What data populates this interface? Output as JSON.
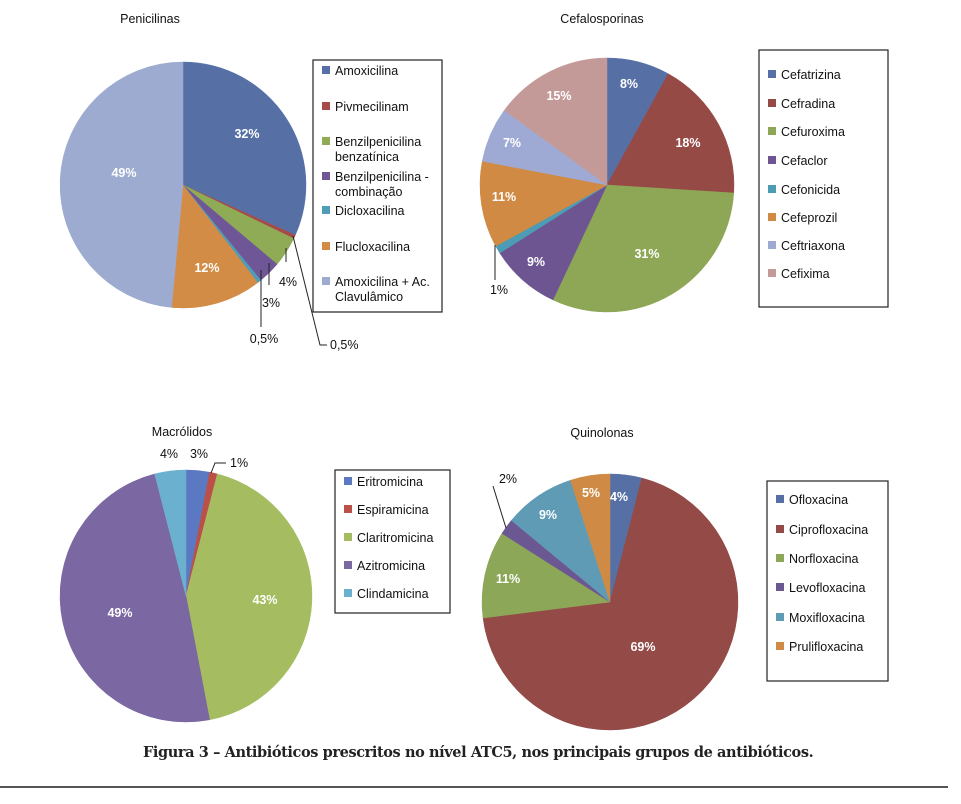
{
  "chart_data": [
    {
      "type": "pie",
      "title": "Penicilinas",
      "start_angle_deg": 0,
      "direction": "clockwise",
      "categories": [
        "Amoxicilina",
        "Pivmecilinam",
        "Benzilpenicilina benzatínica",
        "Benzilpenicilina - combinação",
        "Dicloxacilina",
        "Flucloxacilina",
        "Amoxicilina + Ac. Clavulâmico"
      ],
      "legend_lines": [
        [
          "Amoxicilina"
        ],
        [
          "Pivmecilinam"
        ],
        [
          "Benzilpenicilina",
          "benzatínica"
        ],
        [
          "Benzilpenicilina -",
          "combinação"
        ],
        [
          "Dicloxacilina"
        ],
        [
          "Flucloxacilina"
        ],
        [
          "Amoxicilina + Ac.",
          "Clavulâmico"
        ]
      ],
      "values": [
        32,
        0.5,
        4,
        3,
        0.5,
        12,
        49
      ],
      "labels": [
        "32%",
        "0,5%",
        "4%",
        "3%",
        "0,5%",
        "12%",
        "49%"
      ],
      "colors": [
        "#5670a6",
        "#a64b47",
        "#8fab55",
        "#6f5797",
        "#4f9cb7",
        "#d38c45",
        "#9eabd1"
      ],
      "legend_position": "right"
    },
    {
      "type": "pie",
      "title": "Cefalosporinas",
      "start_angle_deg": 0,
      "direction": "clockwise",
      "categories": [
        "Cefatrizina",
        "Cefradina",
        "Cefuroxima",
        "Cefaclor",
        "Cefonicida",
        "Cefeprozil",
        "Ceftriaxona",
        "Cefixima"
      ],
      "legend_lines": [
        [
          "Cefatrizina"
        ],
        [
          "Cefradina"
        ],
        [
          "Cefuroxima"
        ],
        [
          "Cefaclor"
        ],
        [
          "Cefonicida"
        ],
        [
          "Cefeprozil"
        ],
        [
          "Ceftriaxona"
        ],
        [
          "Cefixima"
        ]
      ],
      "values": [
        8,
        18,
        31,
        9,
        1,
        11,
        7,
        15
      ],
      "labels": [
        "8%",
        "18%",
        "31%",
        "9%",
        "1%",
        "11%",
        "7%",
        "15%"
      ],
      "colors": [
        "#5670a6",
        "#964a46",
        "#8ea756",
        "#6c5591",
        "#4b9cb4",
        "#d08a44",
        "#9eaad3",
        "#c49a98"
      ],
      "legend_position": "right"
    },
    {
      "type": "pie",
      "title": "Macrólidos",
      "start_angle_deg": 0,
      "direction": "clockwise",
      "categories": [
        "Eritromicina",
        "Espiramicina",
        "Claritromicina",
        "Azitromicina",
        "Clindamicina"
      ],
      "legend_lines": [
        [
          "Eritromicina"
        ],
        [
          "Espiramicina"
        ],
        [
          "Claritromicina"
        ],
        [
          "Azitromicina"
        ],
        [
          "Clindamicina"
        ]
      ],
      "values": [
        3,
        1,
        43,
        49,
        4
      ],
      "labels": [
        "3%",
        "1%",
        "43%",
        "49%",
        "4%"
      ],
      "colors": [
        "#5a79c2",
        "#bb5049",
        "#a5bd60",
        "#7b67a1",
        "#6cb0cf"
      ],
      "legend_position": "right"
    },
    {
      "type": "pie",
      "title": "Quinolonas",
      "start_angle_deg": 0,
      "direction": "clockwise",
      "categories": [
        "Ofloxacina",
        "Ciprofloxacina",
        "Norfloxacina",
        "Levofloxacina",
        "Moxifloxacina",
        "Prulifloxacina"
      ],
      "legend_lines": [
        [
          "Ofloxacina"
        ],
        [
          "Ciprofloxacina"
        ],
        [
          "Norfloxacina"
        ],
        [
          "Levofloxacina"
        ],
        [
          "Moxifloxacina"
        ],
        [
          "Prulifloxacina"
        ]
      ],
      "values": [
        4,
        69,
        11,
        2,
        9,
        5
      ],
      "labels": [
        "4%",
        "69%",
        "11%",
        "2%",
        "9%",
        "5%"
      ],
      "colors": [
        "#5670a6",
        "#944a46",
        "#8ca757",
        "#6b5792",
        "#5f9bb5",
        "#cf8b45"
      ],
      "legend_position": "right"
    }
  ],
  "caption": "Figura 3 – Antibióticos prescritos no nível ATC5, nos principais grupos de antibióticos."
}
